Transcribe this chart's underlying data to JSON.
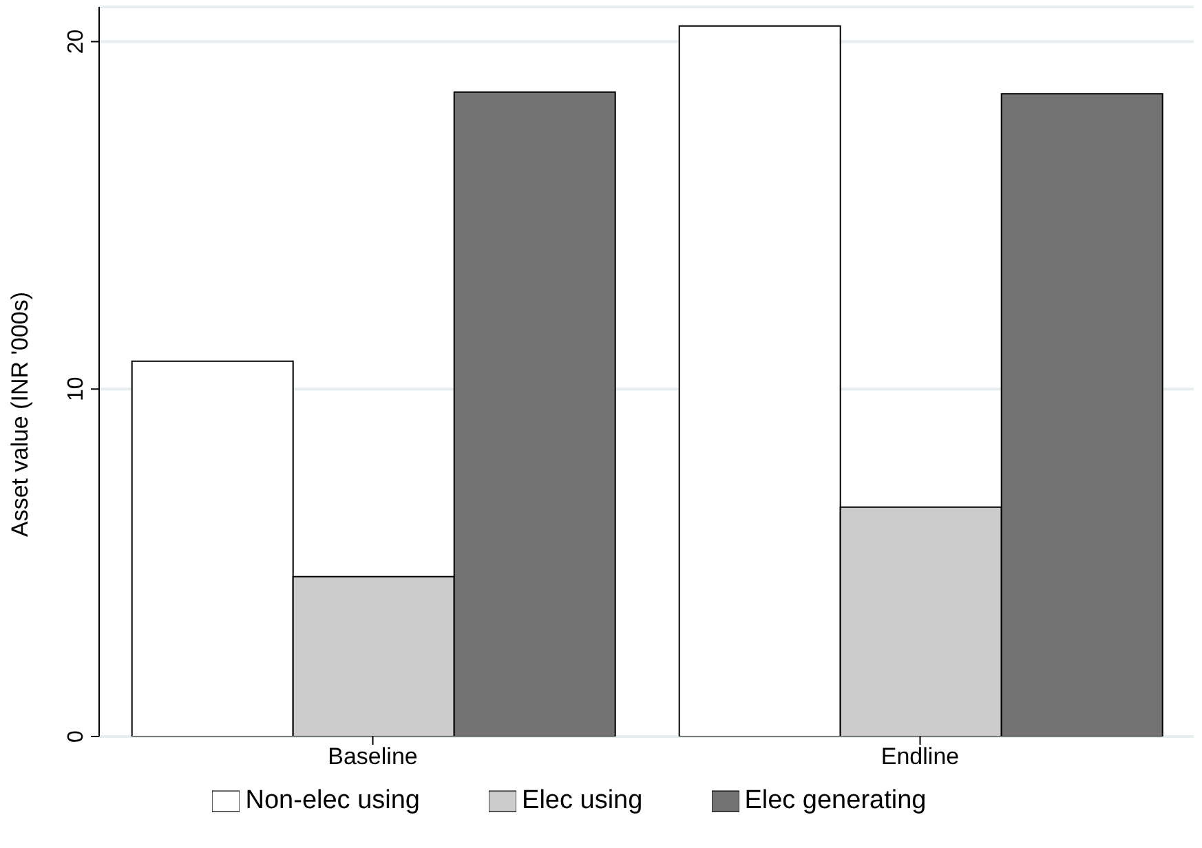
{
  "chart_data": {
    "type": "bar",
    "categories": [
      "Baseline",
      "Endline"
    ],
    "ylabel": "Asset value (INR '000s)",
    "series": [
      {
        "name": "Non-elec using",
        "color": "#ffffff",
        "values": [
          10.8,
          20.45
        ]
      },
      {
        "name": "Elec using",
        "color": "#cccccc",
        "values": [
          4.6,
          6.6
        ]
      },
      {
        "name": "Elec generating",
        "color": "#737373",
        "values": [
          18.55,
          18.5
        ]
      }
    ],
    "ylim": [
      0,
      21
    ],
    "yticks": [
      0,
      10,
      20
    ],
    "grid": "y",
    "legend": "bottom"
  }
}
